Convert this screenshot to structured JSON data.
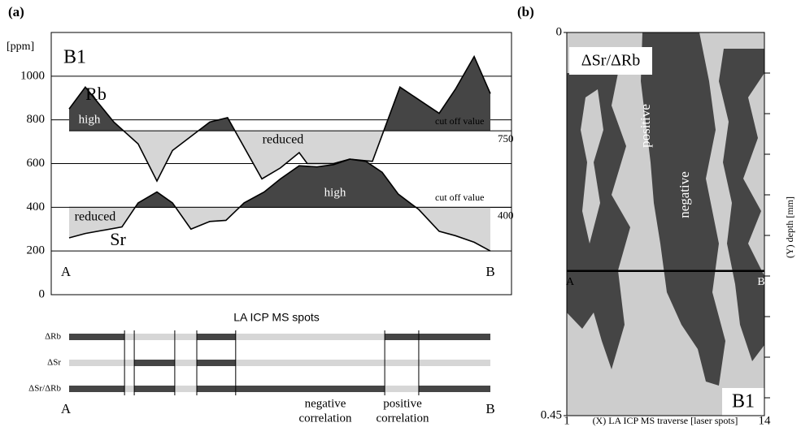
{
  "chart_data": [
    {
      "type": "line",
      "panel_label": "(a)",
      "title": "B1",
      "y_unit": "[ppm]",
      "ylim": [
        0,
        1200
      ],
      "yticks": [
        0,
        200,
        400,
        600,
        800,
        1000
      ],
      "xlim": [
        1,
        14
      ],
      "grid": true,
      "end_labels": [
        "A",
        "B"
      ],
      "cutoff_text": "cut off value",
      "high_color": "#454545",
      "low_color": "#d6d6d6",
      "series": [
        {
          "name": "Rb",
          "color": "#000000",
          "cutoff": 750,
          "above_label": "high",
          "below_label": "reduced",
          "x": [
            1,
            1.5,
            2.38,
            3.13,
            3.71,
            4.19,
            5.34,
            5.89,
            6.95,
            7.52,
            8.1,
            8.35,
            9.16,
            9.66,
            10.36,
            11.21,
            12.42,
            12.92,
            13.5,
            14
          ],
          "values": [
            850,
            950,
            790,
            690,
            520,
            660,
            790,
            810,
            530,
            580,
            650,
            600,
            600,
            620,
            610,
            950,
            830,
            940,
            1090,
            920
          ]
        },
        {
          "name": "Sr",
          "color": "#000000",
          "cutoff": 400,
          "above_label": "high",
          "below_label": "reduced",
          "x": [
            1,
            1.5,
            2.63,
            3.13,
            3.71,
            4.19,
            4.76,
            5.34,
            5.84,
            6.4,
            7.02,
            7.52,
            8.1,
            8.65,
            9.16,
            9.66,
            10.16,
            10.66,
            11.16,
            11.79,
            12.42,
            12.92,
            13.5,
            14
          ],
          "values": [
            260,
            280,
            310,
            420,
            470,
            420,
            300,
            335,
            340,
            420,
            470,
            530,
            590,
            585,
            595,
            620,
            610,
            560,
            460,
            390,
            290,
            270,
            240,
            200
          ]
        }
      ],
      "strip": {
        "title": "LA ICP MS spots",
        "rows": [
          {
            "name": "ΔRb",
            "segments": [
              {
                "from": 1,
                "to": 2.71,
                "color": "#454545"
              },
              {
                "from": 2.71,
                "to": 4.94,
                "color": "#d6d6d6"
              },
              {
                "from": 4.94,
                "to": 6.14,
                "color": "#454545"
              },
              {
                "from": 6.14,
                "to": 10.74,
                "color": "#d6d6d6"
              },
              {
                "from": 10.74,
                "to": 14,
                "color": "#454545"
              }
            ]
          },
          {
            "name": "ΔSr",
            "segments": [
              {
                "from": 1,
                "to": 3.01,
                "color": "#d6d6d6"
              },
              {
                "from": 3.01,
                "to": 4.26,
                "color": "#454545"
              },
              {
                "from": 4.26,
                "to": 4.94,
                "color": "#d6d6d6"
              },
              {
                "from": 4.94,
                "to": 6.14,
                "color": "#454545"
              },
              {
                "from": 6.14,
                "to": 14,
                "color": "#d6d6d6"
              }
            ]
          },
          {
            "name": "ΔSr/ΔRb",
            "segments": [
              {
                "from": 1,
                "to": 2.71,
                "color": "#454545"
              },
              {
                "from": 2.71,
                "to": 3.01,
                "color": "#d6d6d6"
              },
              {
                "from": 3.01,
                "to": 4.26,
                "color": "#454545"
              },
              {
                "from": 4.26,
                "to": 4.94,
                "color": "#d6d6d6"
              },
              {
                "from": 4.94,
                "to": 10.74,
                "color": "#454545"
              },
              {
                "from": 10.74,
                "to": 11.79,
                "color": "#d6d6d6"
              },
              {
                "from": 11.79,
                "to": 14,
                "color": "#454545"
              }
            ]
          }
        ],
        "annotations": [
          [
            "negative",
            "correlation"
          ],
          [
            "positive",
            "correlation"
          ]
        ]
      }
    },
    {
      "type": "contour",
      "panel_label": "(b)",
      "title": "ΔSr/ΔRb",
      "subtitle": "B1",
      "region_labels": [
        "positive",
        "negative"
      ],
      "xlabel": "(X) LA ICP MS traverse [laser spots]",
      "ylabel": "(Y) depth [mm]",
      "xlim": [
        1,
        14
      ],
      "xticks": [
        1,
        14
      ],
      "ylim": [
        0,
        0.45
      ],
      "yticks": [
        0,
        0.45
      ],
      "traverse_depth": 0.28,
      "end_labels": [
        "A",
        "B"
      ]
    }
  ]
}
